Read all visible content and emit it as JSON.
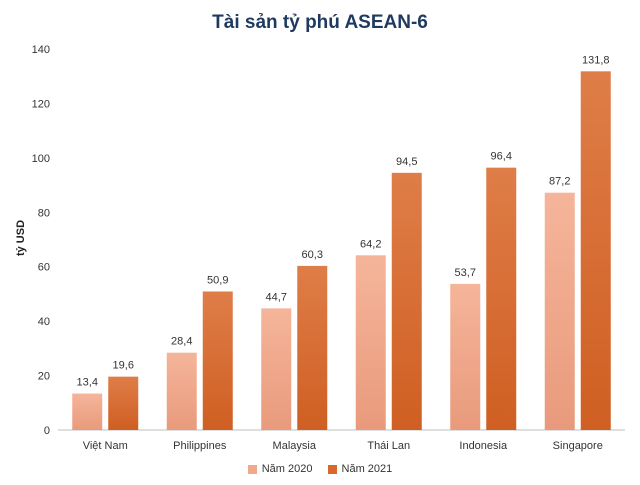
{
  "chart_data": {
    "type": "bar",
    "title": "Tài sản tỷ phú ASEAN-6",
    "ylabel": "tỷ USD",
    "xlabel": "",
    "ylim": [
      0,
      140
    ],
    "yticks": [
      0,
      20,
      40,
      60,
      80,
      100,
      120,
      140
    ],
    "categories": [
      "Việt Nam",
      "Philippines",
      "Malaysia",
      "Thái Lan",
      "Indonesia",
      "Singapore"
    ],
    "series": [
      {
        "name": "Năm 2020",
        "values": [
          13.4,
          28.4,
          44.7,
          64.2,
          53.7,
          87.2
        ],
        "labels": [
          "13,4",
          "28,4",
          "44,7",
          "64,2",
          "53,7",
          "87,2"
        ]
      },
      {
        "name": "Năm 2021",
        "values": [
          19.6,
          50.9,
          60.3,
          94.5,
          96.4,
          131.8
        ],
        "labels": [
          "19,6",
          "50,9",
          "60,3",
          "94,5",
          "96,4",
          "131,8"
        ]
      }
    ],
    "grid": false,
    "legend_position": "bottom"
  },
  "colors": {
    "series_2020": "#f2a98a",
    "series_2021": "#d9692a",
    "title": "#1f3a5f"
  }
}
